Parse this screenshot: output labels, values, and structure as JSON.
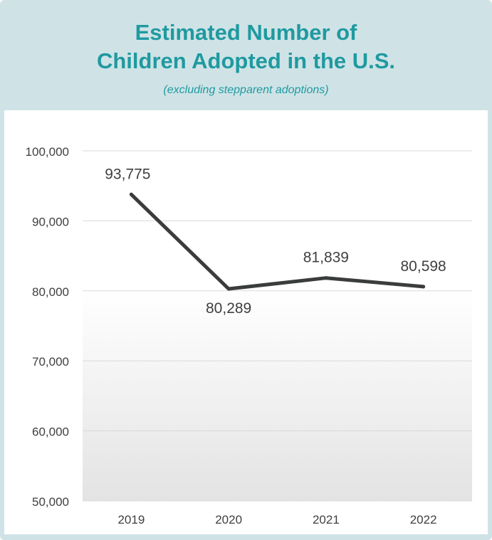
{
  "chart_data": {
    "type": "line",
    "title_lines": [
      "Estimated Number of",
      "Children Adopted in the U.S."
    ],
    "subtitle": "(excluding stepparent adoptions)",
    "categories": [
      "2019",
      "2020",
      "2021",
      "2022"
    ],
    "series": [
      {
        "values": [
          93775,
          80289,
          81839,
          80598
        ]
      }
    ],
    "data_labels": [
      "93,775",
      "80,289",
      "81,839",
      "80,598"
    ],
    "label_positions": [
      "above",
      "below",
      "above",
      "above"
    ],
    "y_ticks": [
      "50,000",
      "60,000",
      "70,000",
      "80,000",
      "90,000",
      "100,000"
    ],
    "y_tick_values": [
      50000,
      60000,
      70000,
      80000,
      90000,
      100000
    ],
    "ylim": [
      50000,
      100000
    ],
    "grid": true,
    "colors": {
      "line": "#3a3d3c",
      "title": "#1f9aa0",
      "frame": "#cfe3e6",
      "grid": "#d9d9d9",
      "text": "#404040"
    }
  }
}
